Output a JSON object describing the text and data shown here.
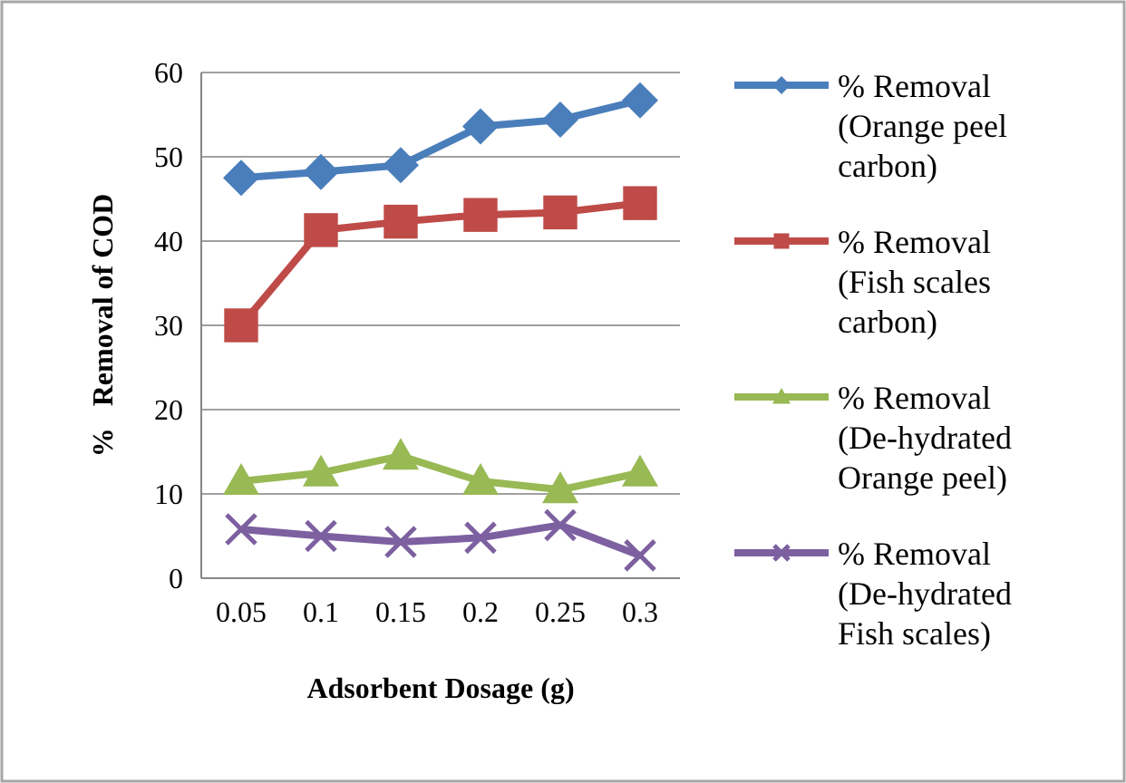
{
  "chart_data": {
    "type": "line",
    "xlabel": "Adsorbent Dosage (g)",
    "ylabel": "%   Removal of COD",
    "categories": [
      "0.05",
      "0.1",
      "0.15",
      "0.2",
      "0.25",
      "0.3"
    ],
    "ylim": [
      0,
      60
    ],
    "yticks": [
      0,
      10,
      20,
      30,
      40,
      50,
      60
    ],
    "grid": "y",
    "legend": "right",
    "series": [
      {
        "name": "% Removal (Orange peel carbon)",
        "color": "#4a7ebb",
        "marker": "diamond",
        "values": [
          47.5,
          48.2,
          49,
          53.6,
          54.4,
          56.7
        ]
      },
      {
        "name": "% Removal (Fish scales carbon)",
        "color": "#be4b48",
        "marker": "square",
        "values": [
          30,
          41.3,
          42.3,
          43.1,
          43.4,
          44.5
        ]
      },
      {
        "name": "% Removal (De-hydrated Orange peel)",
        "color": "#98b954",
        "marker": "triangle",
        "values": [
          11.5,
          12.5,
          14.5,
          11.5,
          10.5,
          12.5
        ]
      },
      {
        "name": "% Removal (De-hydrated Fish scales)",
        "color": "#7d60a0",
        "marker": "cross",
        "values": [
          5.8,
          5.0,
          4.3,
          4.8,
          6.3,
          2.7
        ]
      }
    ]
  }
}
